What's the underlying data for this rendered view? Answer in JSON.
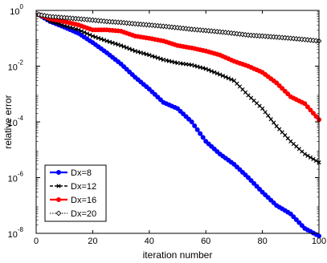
{
  "chart_data": {
    "type": "line",
    "xlabel": "iteration number",
    "ylabel": "relative error",
    "xlim": [
      0,
      100
    ],
    "ylim": [
      1e-08,
      1
    ],
    "yscale": "log",
    "xticks": [
      0,
      20,
      40,
      60,
      80,
      100
    ],
    "yticks": [
      {
        "base": "10",
        "exp": "0",
        "value": 1
      },
      {
        "base": "10",
        "exp": "-2",
        "value": 0.01
      },
      {
        "base": "10",
        "exp": "-4",
        "value": 0.0001
      },
      {
        "base": "10",
        "exp": "-6",
        "value": 1e-06
      },
      {
        "base": "10",
        "exp": "-8",
        "value": 1e-08
      }
    ],
    "legend_position": "bottom-left",
    "series": [
      {
        "name": "Dx=8",
        "color": "#0000ff",
        "marker": "circle",
        "x": [
          1,
          5,
          10,
          15,
          20,
          25,
          30,
          35,
          40,
          45,
          50,
          55,
          60,
          65,
          70,
          75,
          80,
          85,
          90,
          95,
          100
        ],
        "y": [
          0.7,
          0.4,
          0.25,
          0.15,
          0.07,
          0.03,
          0.012,
          0.004,
          0.0015,
          0.0005,
          0.0003,
          0.0001,
          2e-05,
          7e-06,
          3e-06,
          1e-06,
          3e-07,
          1e-07,
          5e-08,
          1.5e-08,
          8e-09
        ]
      },
      {
        "name": "Dx=12",
        "color": "#000000",
        "marker": "x",
        "x": [
          1,
          5,
          10,
          15,
          20,
          25,
          30,
          35,
          40,
          45,
          50,
          55,
          60,
          65,
          70,
          75,
          80,
          85,
          90,
          95,
          100
        ],
        "y": [
          0.7,
          0.4,
          0.28,
          0.2,
          0.12,
          0.08,
          0.055,
          0.035,
          0.025,
          0.017,
          0.013,
          0.011,
          0.008,
          0.005,
          0.003,
          0.0009,
          0.0003,
          7e-05,
          2e-05,
          7e-06,
          3.5e-06
        ]
      },
      {
        "name": "Dx=16",
        "color": "#ff0000",
        "marker": "circle",
        "x": [
          1,
          5,
          10,
          15,
          20,
          25,
          30,
          35,
          40,
          45,
          50,
          55,
          60,
          65,
          70,
          75,
          80,
          85,
          90,
          95,
          100
        ],
        "y": [
          0.7,
          0.5,
          0.4,
          0.3,
          0.2,
          0.2,
          0.18,
          0.12,
          0.1,
          0.08,
          0.055,
          0.045,
          0.035,
          0.025,
          0.015,
          0.01,
          0.006,
          0.0025,
          0.0008,
          0.00045,
          0.00012
        ]
      },
      {
        "name": "Dx=20",
        "color": "#000000",
        "marker": "diamond",
        "x": [
          1,
          5,
          10,
          15,
          20,
          25,
          30,
          35,
          40,
          45,
          50,
          55,
          60,
          65,
          70,
          75,
          80,
          85,
          90,
          95,
          100
        ],
        "y": [
          0.7,
          0.6,
          0.55,
          0.5,
          0.45,
          0.4,
          0.37,
          0.33,
          0.3,
          0.27,
          0.24,
          0.21,
          0.19,
          0.17,
          0.15,
          0.13,
          0.12,
          0.11,
          0.1,
          0.09,
          0.08
        ]
      }
    ]
  }
}
